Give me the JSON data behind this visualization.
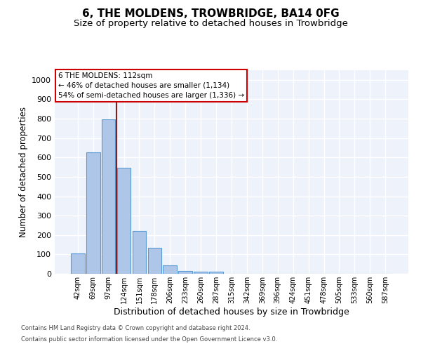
{
  "title": "6, THE MOLDENS, TROWBRIDGE, BA14 0FG",
  "subtitle": "Size of property relative to detached houses in Trowbridge",
  "xlabel": "Distribution of detached houses by size in Trowbridge",
  "ylabel": "Number of detached properties",
  "categories": [
    "42sqm",
    "69sqm",
    "97sqm",
    "124sqm",
    "151sqm",
    "178sqm",
    "206sqm",
    "233sqm",
    "260sqm",
    "287sqm",
    "315sqm",
    "342sqm",
    "369sqm",
    "396sqm",
    "424sqm",
    "451sqm",
    "478sqm",
    "505sqm",
    "533sqm",
    "560sqm",
    "587sqm"
  ],
  "values": [
    105,
    625,
    795,
    545,
    220,
    135,
    42,
    15,
    10,
    10,
    0,
    0,
    0,
    0,
    0,
    0,
    0,
    0,
    0,
    0,
    0
  ],
  "bar_color": "#aec6e8",
  "bar_edge_color": "#5a9ad5",
  "vline_color": "#8b1a1a",
  "annotation_text": "6 THE MOLDENS: 112sqm\n← 46% of detached houses are smaller (1,134)\n54% of semi-detached houses are larger (1,336) →",
  "annotation_box_color": "#ffffff",
  "annotation_box_edge_color": "#cc0000",
  "ylim": [
    0,
    1050
  ],
  "yticks": [
    0,
    100,
    200,
    300,
    400,
    500,
    600,
    700,
    800,
    900,
    1000
  ],
  "background_color": "#eef3fb",
  "grid_color": "#ffffff",
  "footer1": "Contains HM Land Registry data © Crown copyright and database right 2024.",
  "footer2": "Contains public sector information licensed under the Open Government Licence v3.0.",
  "title_fontsize": 11,
  "subtitle_fontsize": 9.5,
  "xlabel_fontsize": 9,
  "ylabel_fontsize": 8.5
}
